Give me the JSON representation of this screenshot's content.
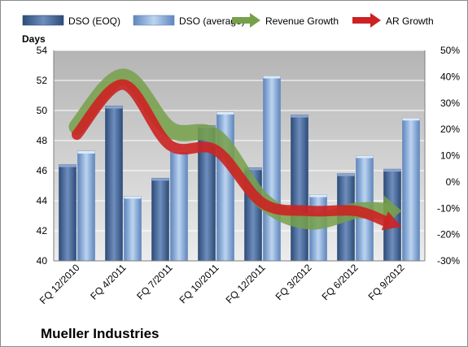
{
  "chart_data": {
    "type": "bar",
    "title": "Mueller Industries",
    "ylabel": "Days",
    "ylim": [
      40,
      54
    ],
    "y_ticks": [
      "40",
      "42",
      "44",
      "46",
      "48",
      "50",
      "52",
      "54"
    ],
    "y2lim": [
      -30,
      50
    ],
    "y2_ticks": [
      "-30%",
      "-20%",
      "-10%",
      "0%",
      "10%",
      "20%",
      "30%",
      "40%",
      "50%"
    ],
    "categories": [
      "FQ 12/2010",
      "FQ 4/2011",
      "FQ 7/2011",
      "FQ 10/2011",
      "FQ 12/2011",
      "FQ 3/2012",
      "FQ 6/2012",
      "FQ 9/2012"
    ],
    "grid": true,
    "legend_position": "top",
    "series": [
      {
        "name": "DSO (EOQ)",
        "type": "bar",
        "axis": "left",
        "color": "#4a6a9a",
        "values": [
          46.4,
          50.3,
          45.5,
          49.0,
          46.2,
          49.7,
          45.8,
          46.1
        ]
      },
      {
        "name": "DSO (average)",
        "type": "bar",
        "axis": "left",
        "color": "#8db0dc",
        "values": [
          47.3,
          44.3,
          47.4,
          49.9,
          52.3,
          44.4,
          47.0,
          49.5
        ]
      },
      {
        "name": "Revenue Growth",
        "type": "line",
        "axis": "right",
        "color": "#77a04a",
        "values": [
          21,
          40,
          20,
          17,
          -7,
          -15,
          -11,
          -11
        ]
      },
      {
        "name": "AR Growth",
        "type": "line",
        "axis": "right",
        "color": "#cc2222",
        "values": [
          18,
          37,
          14,
          12,
          -8,
          -11,
          -11,
          -17
        ]
      }
    ]
  }
}
